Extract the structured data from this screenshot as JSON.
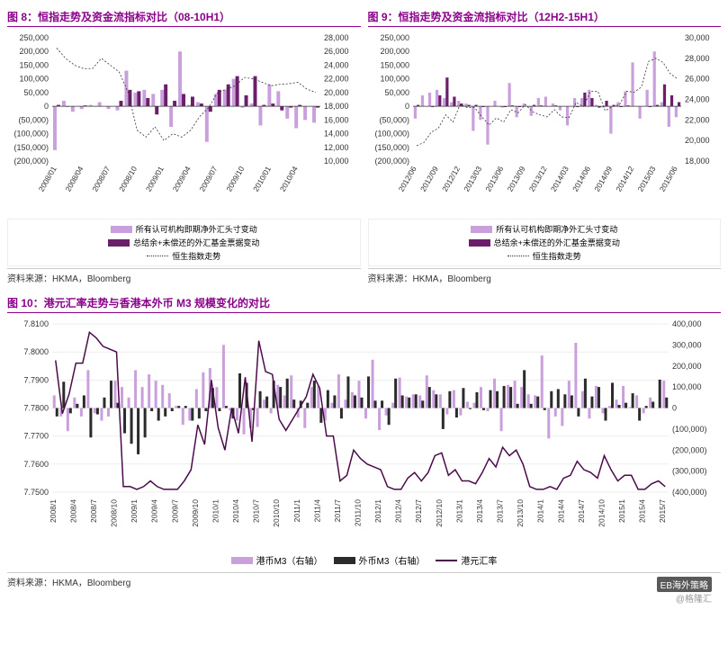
{
  "colors": {
    "title": "#8b008b",
    "series_light": "#c9a0dc",
    "series_dark": "#6b1f6b",
    "series_black": "#2b2b2b",
    "line_dark": "#4b0b4b",
    "axis": "#333333",
    "grid": "#dddddd",
    "bg": "#ffffff"
  },
  "chart8": {
    "title": "图 8：恒指走势及资金流指标对比（08-10H1）",
    "source": "资料来源：HKMA，Bloomberg",
    "x_labels": [
      "2008/01",
      "2008/04",
      "2008/07",
      "2008/10",
      "2009/01",
      "2009/04",
      "2009/07",
      "2009/10",
      "2010/01",
      "2010/04"
    ],
    "y_left_min": -200000,
    "y_left_max": 250000,
    "y_left_step": 50000,
    "y_right_min": 10000,
    "y_right_max": 28000,
    "y_right_step": 2000,
    "series_light_label": "所有认可机构即期净外汇头寸变动",
    "series_dark_label": "总结余+未偿还的外汇基金票据变动",
    "series_line_label": "恒生指数走势",
    "light": [
      -160000,
      20000,
      -20000,
      -10000,
      5000,
      15000,
      -10000,
      -15000,
      130000,
      50000,
      60000,
      45000,
      60000,
      -75000,
      200000,
      5000,
      15000,
      -130000,
      45000,
      60000,
      100000,
      -5000,
      10000,
      -70000,
      80000,
      55000,
      -45000,
      -80000,
      -50000,
      -60000
    ],
    "dark": [
      5000,
      -2000,
      0,
      3000,
      0,
      0,
      0,
      20000,
      60000,
      55000,
      30000,
      -30000,
      80000,
      20000,
      45000,
      35000,
      10000,
      -20000,
      60000,
      80000,
      110000,
      40000,
      110000,
      5000,
      10000,
      -15000,
      -5000,
      5000,
      0,
      -5000
    ],
    "line": [
      26500,
      25000,
      24000,
      23500,
      23500,
      25000,
      24000,
      23000,
      20000,
      14500,
      13500,
      15000,
      13000,
      14000,
      13500,
      14500,
      16500,
      17800,
      20000,
      20500,
      21000,
      22200,
      22000,
      21500,
      21000,
      21200,
      21300,
      21500,
      20500,
      20000
    ]
  },
  "chart9": {
    "title": "图 9：恒指走势及资金流指标对比（12H2-15H1）",
    "source": "资料来源：HKMA，Bloomberg",
    "x_labels": [
      "2012/06",
      "2012/09",
      "2012/12",
      "2013/03",
      "2013/06",
      "2013/09",
      "2013/12",
      "2014/03",
      "2014/06",
      "2014/09",
      "2014/12",
      "2015/03",
      "2015/06"
    ],
    "y_left_min": -200000,
    "y_left_max": 250000,
    "y_left_step": 50000,
    "y_right_min": 18000,
    "y_right_max": 30000,
    "y_right_step": 2000,
    "series_light_label": "所有认可机构即期净外汇头寸变动",
    "series_dark_label": "总结余+未偿还的外汇基金票据变动",
    "series_line_label": "恒生指数走势",
    "light": [
      -45000,
      40000,
      50000,
      60000,
      30000,
      15000,
      20000,
      10000,
      -90000,
      -50000,
      -140000,
      20000,
      -5000,
      85000,
      -40000,
      10000,
      -35000,
      30000,
      35000,
      10000,
      -15000,
      -70000,
      30000,
      30000,
      60000,
      5000,
      -5000,
      -100000,
      15000,
      55000,
      160000,
      -45000,
      60000,
      200000,
      15000,
      -75000,
      -40000
    ],
    "dark": [
      5000,
      0,
      -3000,
      40000,
      105000,
      35000,
      10000,
      5000,
      5000,
      -3000,
      0,
      0,
      -3000,
      3000,
      -3000,
      0,
      5000,
      3000,
      0,
      3000,
      0,
      0,
      -3000,
      50000,
      30000,
      -5000,
      20000,
      5000,
      -3000,
      3000,
      0,
      0,
      -3000,
      5000,
      80000,
      40000,
      15000
    ],
    "line": [
      19500,
      19800,
      20800,
      21200,
      22500,
      21800,
      23500,
      23200,
      23200,
      22300,
      21500,
      22200,
      21800,
      23000,
      22700,
      23500,
      22800,
      22500,
      22300,
      23000,
      22300,
      22200,
      23700,
      23300,
      24800,
      24800,
      22900,
      23300,
      23500,
      24800,
      24700,
      25200,
      27700,
      28000,
      27600,
      26500,
      26000
    ]
  },
  "chart10": {
    "title": "图 10：港元汇率走势与香港本外币 M3 规模变化的对比",
    "source": "资料来源：HKMA，Bloomberg",
    "x_labels": [
      "2008/1",
      "2008/4",
      "2008/7",
      "2008/10",
      "2009/1",
      "2009/4",
      "2009/7",
      "2009/10",
      "2010/1",
      "2010/4",
      "2010/7",
      "2010/10",
      "2011/1",
      "2011/4",
      "2011/7",
      "2011/10",
      "2012/1",
      "2012/4",
      "2012/7",
      "2012/10",
      "2013/1",
      "2013/4",
      "2013/7",
      "2013/10",
      "2014/1",
      "2014/4",
      "2014/7",
      "2014/10",
      "2015/1",
      "2015/4",
      "2015/7"
    ],
    "y_left_min": 7.75,
    "y_left_max": 7.81,
    "y_left_step": 0.01,
    "y_right_min": -400000,
    "y_right_max": 400000,
    "y_right_step": 100000,
    "series_light_label": "港币M3（右轴）",
    "series_black_label": "外币M3（右轴）",
    "series_line_label": "港元汇率",
    "light": [
      60000,
      -40000,
      -110000,
      50000,
      -40000,
      180000,
      -25000,
      -60000,
      -40000,
      130000,
      100000,
      50000,
      180000,
      100000,
      160000,
      130000,
      110000,
      70000,
      10000,
      -80000,
      -60000,
      90000,
      170000,
      190000,
      100000,
      300000,
      -12000,
      -60000,
      -125000,
      -95000,
      -90000,
      40000,
      -25000,
      110000,
      60000,
      155000,
      -45000,
      -95000,
      100000,
      105000,
      -60000,
      25000,
      160000,
      40000,
      75000,
      130000,
      -50000,
      230000,
      -105000,
      -35000,
      25000,
      145000,
      55000,
      65000,
      60000,
      155000,
      85000,
      65000,
      -30000,
      85000,
      -35000,
      30000,
      25000,
      100000,
      -15000,
      140000,
      -110000,
      110000,
      130000,
      100000,
      65000,
      60000,
      250000,
      -145000,
      -40000,
      -85000,
      130000,
      310000,
      80000,
      -50000,
      105000,
      -25000,
      10000,
      40000,
      105000,
      5000,
      60000,
      -25000,
      50000,
      0,
      130000
    ],
    "black": [
      -40000,
      125000,
      -25000,
      20000,
      60000,
      -140000,
      -30000,
      50000,
      130000,
      25000,
      -120000,
      -170000,
      -220000,
      -140000,
      -15000,
      -60000,
      -40000,
      -15000,
      10000,
      10000,
      -60000,
      -50000,
      -15000,
      95000,
      -15000,
      10000,
      -50000,
      165000,
      120000,
      -10000,
      80000,
      55000,
      130000,
      100000,
      140000,
      40000,
      35000,
      25000,
      130000,
      -70000,
      85000,
      60000,
      -50000,
      150000,
      60000,
      50000,
      150000,
      35000,
      35000,
      -80000,
      140000,
      60000,
      50000,
      65000,
      35000,
      100000,
      65000,
      -100000,
      80000,
      -45000,
      95000,
      -5000,
      75000,
      -10000,
      85000,
      80000,
      105000,
      100000,
      20000,
      180000,
      20000,
      55000,
      -10000,
      80000,
      90000,
      65000,
      60000,
      -40000,
      140000,
      55000,
      100000,
      -60000,
      120000,
      15000,
      25000,
      70000,
      -60000,
      10000,
      30000,
      135000,
      50000
    ],
    "line": [
      7.797,
      7.778,
      7.785,
      7.796,
      7.796,
      7.807,
      7.805,
      7.802,
      7.801,
      7.8,
      7.752,
      7.752,
      7.751,
      7.752,
      7.754,
      7.752,
      7.751,
      7.751,
      7.751,
      7.754,
      7.758,
      7.774,
      7.767,
      7.79,
      7.773,
      7.765,
      7.78,
      7.771,
      7.791,
      7.768,
      7.804,
      7.793,
      7.792,
      7.776,
      7.772,
      7.776,
      7.78,
      7.784,
      7.792,
      7.787,
      7.77,
      7.77,
      7.754,
      7.756,
      7.765,
      7.762,
      7.76,
      7.759,
      7.758,
      7.752,
      7.751,
      7.751,
      7.755,
      7.757,
      7.754,
      7.757,
      7.763,
      7.764,
      7.756,
      7.758,
      7.754,
      7.754,
      7.753,
      7.757,
      7.762,
      7.759,
      7.766,
      7.763,
      7.765,
      7.76,
      7.752,
      7.751,
      7.751,
      7.752,
      7.751,
      7.755,
      7.756,
      7.761,
      7.758,
      7.757,
      7.755,
      7.763,
      7.758,
      7.754,
      7.756,
      7.756,
      7.751,
      7.751,
      7.753,
      7.754,
      7.752
    ]
  },
  "watermark_label1": "@格隆汇",
  "watermark_label2": "EB海外策略"
}
